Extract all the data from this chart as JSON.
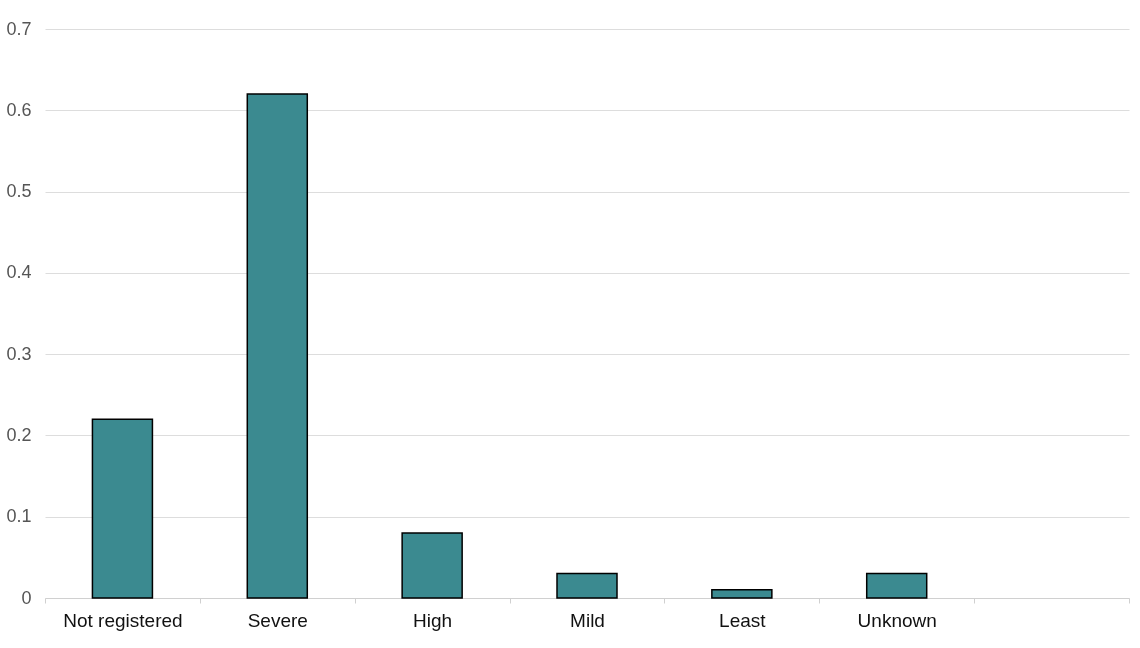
{
  "chart_data": {
    "type": "bar",
    "categories": [
      "Not registered",
      "Severe",
      "High",
      "Mild",
      "Least",
      "Unknown",
      null
    ],
    "values": [
      0.22,
      0.62,
      0.08,
      0.03,
      0.01,
      0.03,
      null
    ],
    "color": "#3b8a90",
    "ylim": [
      0,
      0.7
    ],
    "yticks": [
      0,
      0.1,
      0.2,
      0.3,
      0.4,
      0.5,
      0.6,
      0.7
    ],
    "grid": "y"
  }
}
